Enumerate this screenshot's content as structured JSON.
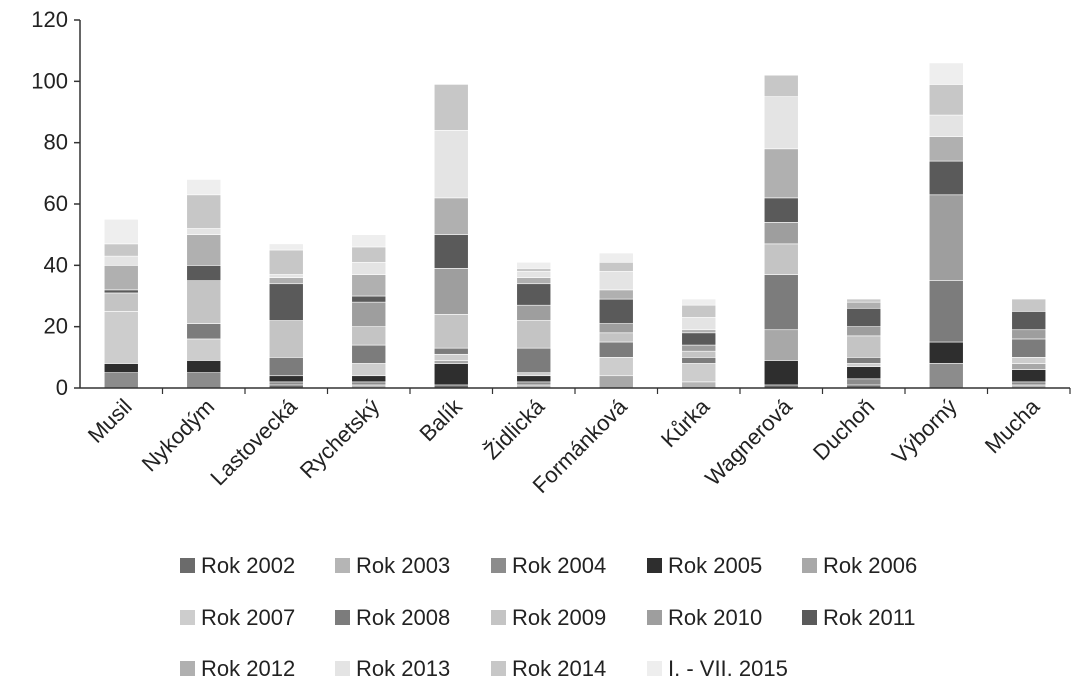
{
  "chart_data": {
    "type": "bar",
    "stacked": true,
    "title": "",
    "xlabel": "",
    "ylabel": "",
    "ylim": [
      0,
      120
    ],
    "yticks": [
      0,
      20,
      40,
      60,
      80,
      100,
      120
    ],
    "grid": false,
    "legend_position": "bottom",
    "categories": [
      "Musil",
      "Nykodým",
      "Lastovecká",
      "Rychetský",
      "Balík",
      "Židlická",
      "Formánková",
      "Kůrka",
      "Wagnerová",
      "Duchoň",
      "Výborný",
      "Mucha"
    ],
    "series": [
      {
        "name": "Rok 2002",
        "color": "#6b6b6b",
        "values": [
          0,
          0,
          1,
          0,
          1,
          0,
          0,
          0,
          1,
          1,
          0,
          0
        ]
      },
      {
        "name": "Rok 2003",
        "color": "#b5b5b5",
        "values": [
          0,
          0,
          0,
          1,
          0,
          1,
          0,
          2,
          0,
          0,
          0,
          1
        ]
      },
      {
        "name": "Rok 2004",
        "color": "#8c8c8c",
        "values": [
          5,
          5,
          1,
          1,
          0,
          1,
          0,
          0,
          0,
          2,
          8,
          1
        ]
      },
      {
        "name": "Rok 2005",
        "color": "#2e2e2e",
        "values": [
          3,
          4,
          2,
          2,
          7,
          2,
          0,
          0,
          8,
          4,
          7,
          4
        ]
      },
      {
        "name": "Rok 2006",
        "color": "#a8a8a8",
        "values": [
          0,
          0,
          0,
          0,
          1,
          0,
          4,
          0,
          10,
          0,
          0,
          2
        ]
      },
      {
        "name": "Rok 2007",
        "color": "#cdcdcd",
        "values": [
          17,
          7,
          0,
          4,
          2,
          1,
          6,
          6,
          0,
          1,
          0,
          2
        ]
      },
      {
        "name": "Rok 2008",
        "color": "#7c7c7c",
        "values": [
          0,
          5,
          6,
          6,
          2,
          8,
          5,
          2,
          18,
          2,
          20,
          6
        ]
      },
      {
        "name": "Rok 2009",
        "color": "#c4c4c4",
        "values": [
          6,
          14,
          12,
          6,
          11,
          9,
          3,
          2,
          10,
          7,
          0,
          0
        ]
      },
      {
        "name": "Rok 2010",
        "color": "#9e9e9e",
        "values": [
          0,
          0,
          0,
          8,
          15,
          5,
          3,
          2,
          7,
          3,
          28,
          3
        ]
      },
      {
        "name": "Rok 2011",
        "color": "#5a5a5a",
        "values": [
          1,
          5,
          12,
          2,
          11,
          7,
          8,
          4,
          8,
          6,
          11,
          6
        ]
      },
      {
        "name": "Rok 2012",
        "color": "#b0b0b0",
        "values": [
          8,
          10,
          2,
          7,
          12,
          2,
          3,
          1,
          16,
          2,
          8,
          0
        ]
      },
      {
        "name": "Rok 2013",
        "color": "#e4e4e4",
        "values": [
          3,
          2,
          1,
          4,
          22,
          2,
          6,
          4,
          17,
          0,
          7,
          0
        ]
      },
      {
        "name": "Rok 2014",
        "color": "#c7c7c7",
        "values": [
          4,
          11,
          8,
          5,
          15,
          1,
          3,
          4,
          7,
          1,
          10,
          4
        ]
      },
      {
        "name": "I. - VII. 2015",
        "color": "#eeeeee",
        "values": [
          8,
          5,
          2,
          4,
          0,
          2,
          3,
          2,
          0,
          0,
          7,
          0
        ]
      }
    ]
  }
}
